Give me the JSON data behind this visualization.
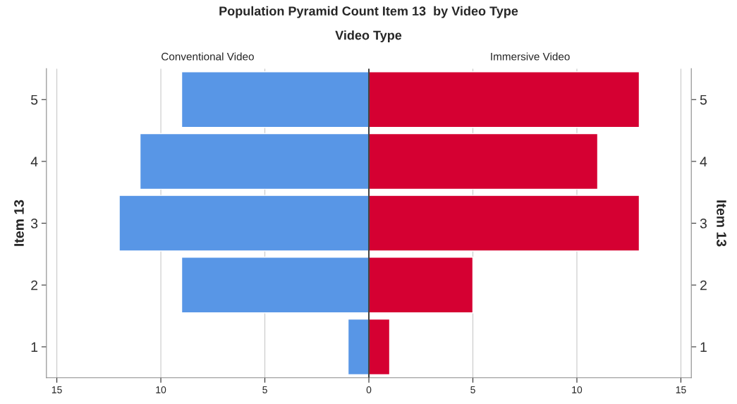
{
  "chart_data": {
    "type": "bar",
    "orientation": "horizontal",
    "title": "Population Pyramid Count Item 13  by Video Type",
    "legend_title": "Video Type",
    "ylabel": "Item 13",
    "y2label": "Item 13",
    "categories": [
      "5",
      "4",
      "3",
      "2",
      "1"
    ],
    "series": [
      {
        "name": "Conventional Video",
        "color": "#5896e6",
        "values": [
          -9,
          -11,
          -12,
          -9,
          -1
        ]
      },
      {
        "name": "Immersive Video",
        "color": "#d50032",
        "values": [
          13,
          11,
          13,
          5,
          1
        ]
      }
    ],
    "xlim": [
      -15.5,
      15.5
    ],
    "xticks": [
      {
        "value": -15,
        "label": "15"
      },
      {
        "value": -10,
        "label": "10"
      },
      {
        "value": -5,
        "label": "5"
      },
      0,
      5,
      10,
      15
    ],
    "ref_lines": [
      {
        "axis": "x",
        "value": 0,
        "color": "#444444"
      }
    ],
    "grid": "x",
    "legend": false,
    "stacked": true
  }
}
